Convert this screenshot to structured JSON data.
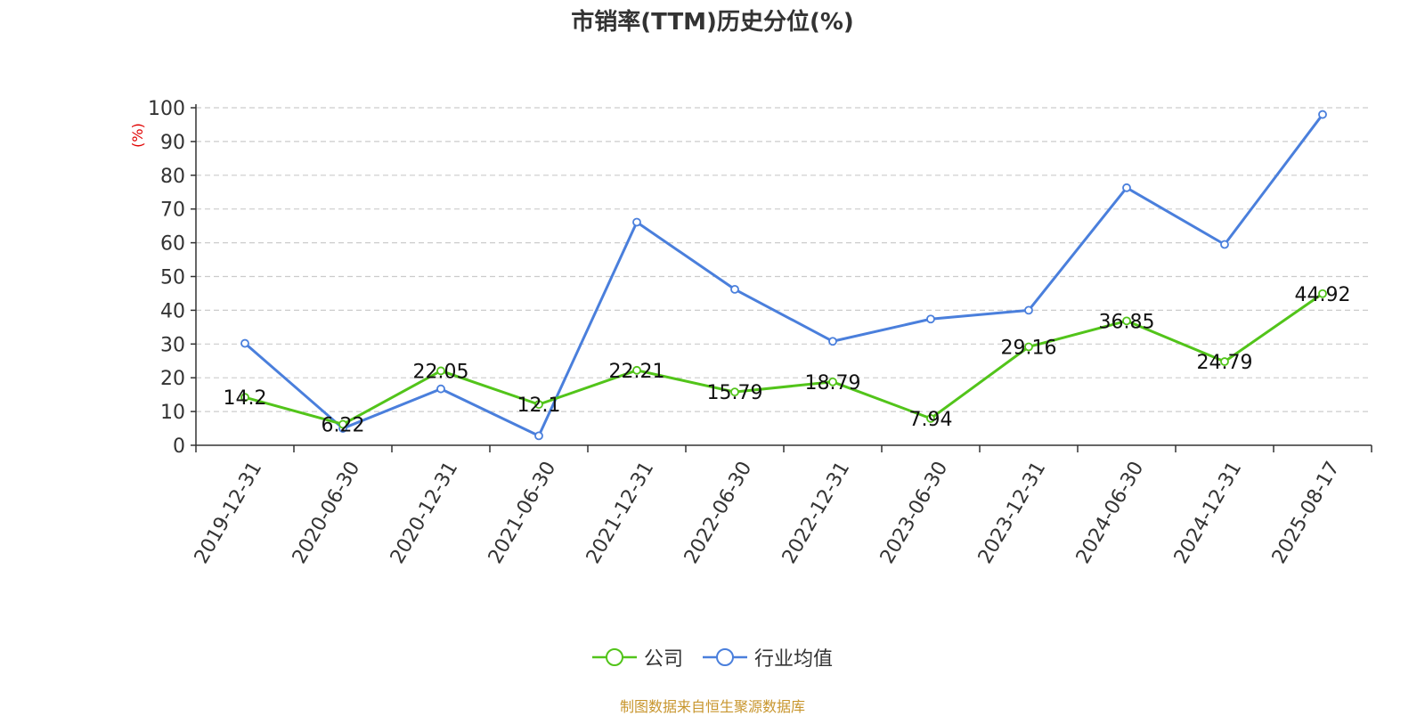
{
  "chart_data": {
    "type": "line",
    "title": "市销率(TTM)历史分位(%)",
    "ylabel": "(%)",
    "ylim": [
      0,
      100
    ],
    "yticks": [
      0,
      10,
      20,
      30,
      40,
      50,
      60,
      70,
      80,
      90,
      100
    ],
    "grid": true,
    "legend_position": "bottom",
    "categories": [
      "2019-12-31",
      "2020-06-30",
      "2020-12-31",
      "2021-06-30",
      "2021-12-31",
      "2022-06-30",
      "2022-12-31",
      "2023-06-30",
      "2023-12-31",
      "2024-06-30",
      "2024-12-31",
      "2025-08-17"
    ],
    "series": [
      {
        "name": "公司",
        "color": "#52c41a",
        "show_labels": true,
        "values": [
          14.2,
          6.22,
          22.05,
          12.1,
          22.21,
          15.79,
          18.79,
          7.94,
          29.16,
          36.85,
          24.79,
          44.92
        ],
        "labels": [
          "14.2",
          "6.22",
          "22.05",
          "12.1",
          "22.21",
          "15.79",
          "18.79",
          "7.94",
          "29.16",
          "36.85",
          "24.79",
          "44.92"
        ]
      },
      {
        "name": "行业均值",
        "color": "#4a7fdc",
        "show_labels": false,
        "values": [
          30.2,
          5.0,
          16.7,
          2.8,
          66.1,
          46.2,
          30.8,
          37.4,
          40.0,
          76.3,
          59.5,
          98.0
        ]
      }
    ]
  },
  "source": "制图数据来自恒生聚源数据库"
}
